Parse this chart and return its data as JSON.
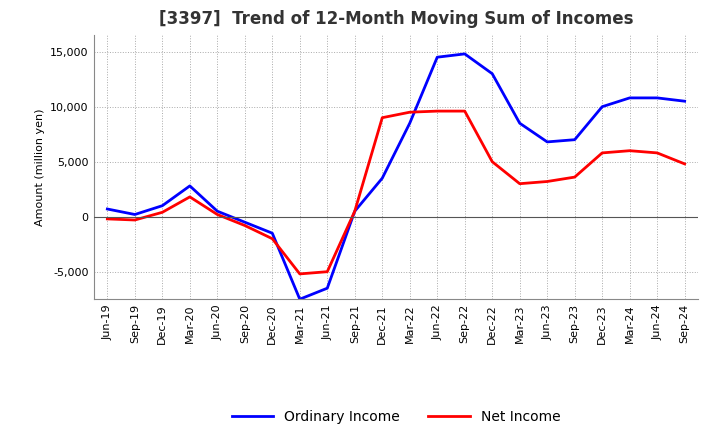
{
  "title": "[3397]  Trend of 12-Month Moving Sum of Incomes",
  "ylabel": "Amount (million yen)",
  "ylim": [
    -7500,
    16500
  ],
  "yticks": [
    -5000,
    0,
    5000,
    10000,
    15000
  ],
  "x_labels": [
    "Jun-19",
    "Sep-19",
    "Dec-19",
    "Mar-20",
    "Jun-20",
    "Sep-20",
    "Dec-20",
    "Mar-21",
    "Jun-21",
    "Sep-21",
    "Dec-21",
    "Mar-22",
    "Jun-22",
    "Sep-22",
    "Dec-22",
    "Mar-23",
    "Jun-23",
    "Sep-23",
    "Dec-23",
    "Mar-24",
    "Jun-24",
    "Sep-24"
  ],
  "ordinary_income": [
    700,
    200,
    1000,
    2800,
    500,
    -500,
    -1500,
    -7500,
    -6500,
    500,
    3500,
    8500,
    14500,
    14800,
    13000,
    8500,
    6800,
    7000,
    10000,
    10800,
    10800,
    10500
  ],
  "net_income": [
    -200,
    -300,
    400,
    1800,
    200,
    -800,
    -2000,
    -5200,
    -5000,
    500,
    9000,
    9500,
    9600,
    9600,
    5000,
    3000,
    3200,
    3600,
    5800,
    6000,
    5800,
    4800
  ],
  "ordinary_color": "#0000ff",
  "net_color": "#ff0000",
  "background_color": "#ffffff",
  "grid_color": "#aaaaaa",
  "title_fontsize": 12,
  "legend_fontsize": 10,
  "tick_fontsize": 8
}
